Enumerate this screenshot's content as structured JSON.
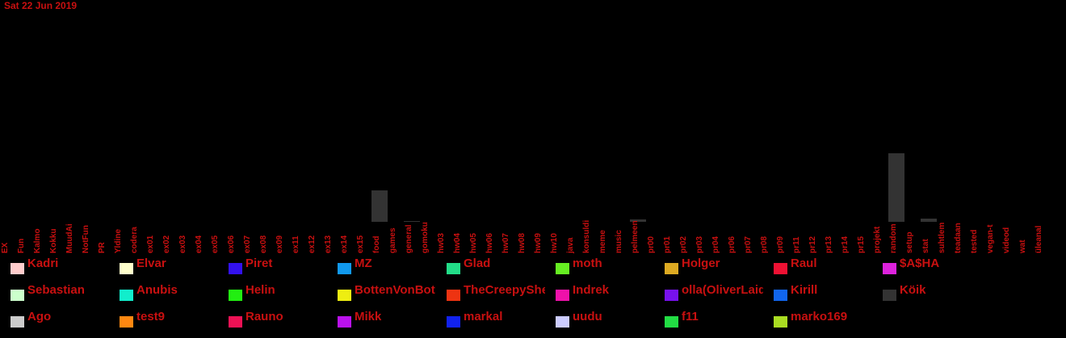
{
  "chart_data": {
    "type": "bar",
    "title": "Sat 22 Jun 2019",
    "xlabel": "",
    "ylabel": "",
    "categories": [
      "EX",
      "Fun",
      "Kalmo",
      "Kokku",
      "MuudAi",
      "NotFun",
      "PR",
      "Yldine",
      "codera",
      "ex01",
      "ex02",
      "ex03",
      "ex04",
      "ex05",
      "ex06",
      "ex07",
      "ex08",
      "ex09",
      "ex11",
      "ex12",
      "ex13",
      "ex14",
      "ex15",
      "food",
      "games",
      "general",
      "gomoku",
      "hw03",
      "hw04",
      "hw05",
      "hw06",
      "hw07",
      "hw08",
      "hw09",
      "hw10",
      "java",
      "konsuldi",
      "meme",
      "music",
      "pelmeen",
      "pr00",
      "pr01",
      "pr02",
      "pr03",
      "pr04",
      "pr06",
      "pr07",
      "pr08",
      "pr09",
      "pr11",
      "pr12",
      "pr13",
      "pr14",
      "pr15",
      "projekt",
      "random",
      "setup",
      "stat",
      "suhtlem",
      "teadaan",
      "tested",
      "vegan-t",
      "videod",
      "wat",
      "üleanal"
    ],
    "values": [
      0,
      0,
      0,
      0,
      0,
      0,
      0,
      0,
      0,
      0,
      0,
      0,
      0,
      0,
      0,
      0,
      0,
      0,
      0,
      0,
      0,
      0,
      0,
      39,
      0,
      1,
      0,
      0,
      0,
      0,
      0,
      0,
      0,
      0,
      0,
      0,
      0,
      0,
      0,
      3,
      0,
      0,
      0,
      0,
      0,
      0,
      0,
      0,
      0,
      0,
      0,
      0,
      0,
      0,
      0,
      85,
      0,
      4,
      0,
      0,
      0,
      0,
      0,
      0,
      0
    ],
    "bar_color": "#333333",
    "legend": [
      {
        "name": "Kadri",
        "color": "#ffcccc"
      },
      {
        "name": "Elvar",
        "color": "#ffffcc"
      },
      {
        "name": "Piret",
        "color": "#3311ee"
      },
      {
        "name": "MZ",
        "color": "#1199ee"
      },
      {
        "name": "Glad",
        "color": "#22dd88"
      },
      {
        "name": "moth",
        "color": "#66ee22"
      },
      {
        "name": "Holger",
        "color": "#ddaa22"
      },
      {
        "name": "Raul",
        "color": "#ee1133"
      },
      {
        "name": "$A$HA",
        "color": "#dd22dd"
      },
      {
        "name": "Sebastian",
        "color": "#ccffcc"
      },
      {
        "name": "Anubis",
        "color": "#11eecc"
      },
      {
        "name": "Helin",
        "color": "#22ee11"
      },
      {
        "name": "BottenVonBot",
        "color": "#eeee11"
      },
      {
        "name": "TheCreepyShe",
        "color": "#ee3311"
      },
      {
        "name": "Indrek",
        "color": "#ee11aa"
      },
      {
        "name": "olla(OliverLaid",
        "color": "#7711ee"
      },
      {
        "name": "Kirill",
        "color": "#1166ee"
      },
      {
        "name": "Köik",
        "color": "#333333"
      },
      {
        "name": "Ago",
        "color": "#cccccc"
      },
      {
        "name": "test9",
        "color": "#ff8811"
      },
      {
        "name": "Rauno",
        "color": "#ee1155"
      },
      {
        "name": "Mikk",
        "color": "#bb11ee"
      },
      {
        "name": "markal",
        "color": "#1122ee"
      },
      {
        "name": "uudu",
        "color": "#ccccff"
      },
      {
        "name": "f11",
        "color": "#22dd44"
      },
      {
        "name": "marko169",
        "color": "#aadd22"
      }
    ]
  }
}
